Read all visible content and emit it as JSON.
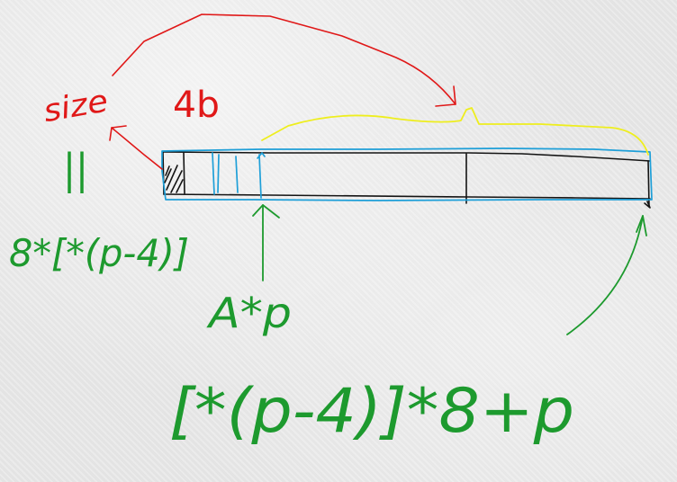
{
  "diagram": {
    "labels": {
      "size": "size",
      "header_bytes": "4b",
      "equals": "||",
      "size_formula": "8*[*(p-4)]",
      "pointer": "A*p",
      "end_formula": "[*(p-4)]*8+p"
    },
    "colors": {
      "red": "#e01818",
      "green": "#1d9a2e",
      "black": "#141414",
      "blue": "#1e9fd8",
      "yellow": "#eeee1e",
      "background": "#e7e7e7"
    }
  }
}
